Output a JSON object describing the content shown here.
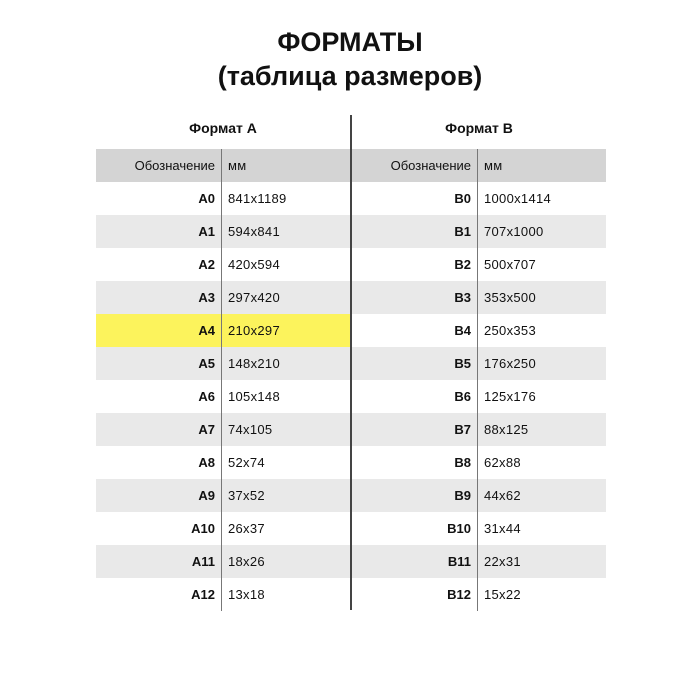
{
  "title_line1": "ФОРМАТЫ",
  "title_line2": "(таблица размеров)",
  "highlight_color": "#fcf35c",
  "tables": [
    {
      "caption": "Формат А",
      "col1": "Обозначение",
      "col2": "мм",
      "rows": [
        {
          "name": "A0",
          "size": "841x1189"
        },
        {
          "name": "A1",
          "size": "594x841"
        },
        {
          "name": "A2",
          "size": "420x594"
        },
        {
          "name": "A3",
          "size": "297x420"
        },
        {
          "name": "A4",
          "size": "210x297",
          "highlighted": true
        },
        {
          "name": "A5",
          "size": "148x210"
        },
        {
          "name": "A6",
          "size": "105x148"
        },
        {
          "name": "A7",
          "size": "74x105"
        },
        {
          "name": "A8",
          "size": "52x74"
        },
        {
          "name": "A9",
          "size": "37x52"
        },
        {
          "name": "A10",
          "size": "26x37"
        },
        {
          "name": "A11",
          "size": "18x26"
        },
        {
          "name": "A12",
          "size": "13x18"
        }
      ]
    },
    {
      "caption": "Формат B",
      "col1": "Обозначение",
      "col2": "мм",
      "rows": [
        {
          "name": "B0",
          "size": "1000x1414"
        },
        {
          "name": "B1",
          "size": "707x1000"
        },
        {
          "name": "B2",
          "size": "500x707"
        },
        {
          "name": "B3",
          "size": "353x500"
        },
        {
          "name": "B4",
          "size": "250x353"
        },
        {
          "name": "B5",
          "size": "176x250"
        },
        {
          "name": "B6",
          "size": "125x176"
        },
        {
          "name": "B7",
          "size": "88x125"
        },
        {
          "name": "B8",
          "size": "62x88"
        },
        {
          "name": "B9",
          "size": "44x62"
        },
        {
          "name": "B10",
          "size": "31x44"
        },
        {
          "name": "B11",
          "size": "22x31"
        },
        {
          "name": "B12",
          "size": "15x22"
        }
      ]
    }
  ]
}
